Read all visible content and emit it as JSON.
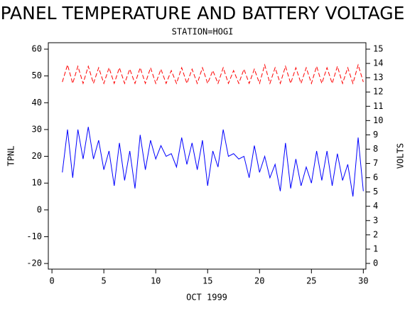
{
  "chart_data": {
    "type": "line",
    "title": "PANEL TEMPERATURE AND BATTERY VOLTAGE",
    "subtitle": "STATION=HOGI",
    "ylabel": "TPNL",
    "y2label": "VOLTS",
    "xlabel": "OCT 1999",
    "x": [
      1,
      1.5,
      2,
      2.5,
      3,
      3.5,
      4,
      4.5,
      5,
      5.5,
      6,
      6.5,
      7,
      7.5,
      8,
      8.5,
      9,
      9.5,
      10,
      10.5,
      11,
      11.5,
      12,
      12.5,
      13,
      13.5,
      14,
      14.5,
      15,
      15.5,
      16,
      16.5,
      17,
      17.5,
      18,
      18.5,
      19,
      19.5,
      20,
      20.5,
      21,
      21.5,
      22,
      22.5,
      23,
      23.5,
      24,
      24.5,
      25,
      25.5,
      26,
      26.5,
      27,
      27.5,
      28,
      28.5,
      29,
      29.5,
      30
    ],
    "series": [
      {
        "name": "TPNL",
        "color": "#0000ff",
        "dashed": false,
        "values": [
          14,
          30,
          12,
          30,
          19,
          31,
          19,
          26,
          15,
          22,
          9,
          25,
          11,
          22,
          8,
          28,
          15,
          26,
          19,
          24,
          20,
          21,
          16,
          27,
          17,
          25,
          15,
          26,
          9,
          22,
          16,
          30,
          20,
          21,
          19,
          20,
          12,
          24,
          14,
          20,
          12,
          17,
          7,
          25,
          8,
          19,
          9,
          16,
          10,
          22,
          11,
          22,
          9,
          21,
          11,
          17,
          5,
          27,
          7
        ]
      },
      {
        "name": "VOLTS",
        "color": "#ff0000",
        "dashed": true,
        "axis": "y2",
        "values": [
          12.7,
          13.9,
          12.6,
          13.8,
          12.6,
          13.8,
          12.6,
          13.7,
          12.6,
          13.7,
          12.6,
          13.7,
          12.6,
          13.6,
          12.6,
          13.7,
          12.6,
          13.7,
          12.6,
          13.6,
          12.6,
          13.5,
          12.6,
          13.7,
          12.6,
          13.6,
          12.6,
          13.7,
          12.6,
          13.5,
          12.6,
          13.7,
          12.6,
          13.5,
          12.6,
          13.6,
          12.6,
          13.6,
          12.6,
          13.9,
          12.6,
          13.7,
          12.6,
          13.8,
          12.6,
          13.7,
          12.6,
          13.7,
          12.6,
          13.8,
          12.6,
          13.7,
          12.6,
          13.8,
          12.6,
          13.7,
          12.6,
          13.9,
          12.7
        ]
      }
    ],
    "xlim": [
      -0.35,
      30.25
    ],
    "xticks": [
      0,
      5,
      10,
      15,
      20,
      25,
      30
    ],
    "ylim": [
      -22.1,
      62.4
    ],
    "yticks": [
      -20,
      -10,
      0,
      10,
      20,
      30,
      40,
      50,
      60
    ],
    "y2lim": [
      -0.4,
      15.45
    ],
    "y2ticks": [
      0,
      1,
      2,
      3,
      4,
      5,
      6,
      7,
      8,
      9,
      10,
      11,
      12,
      13,
      14,
      15
    ]
  }
}
